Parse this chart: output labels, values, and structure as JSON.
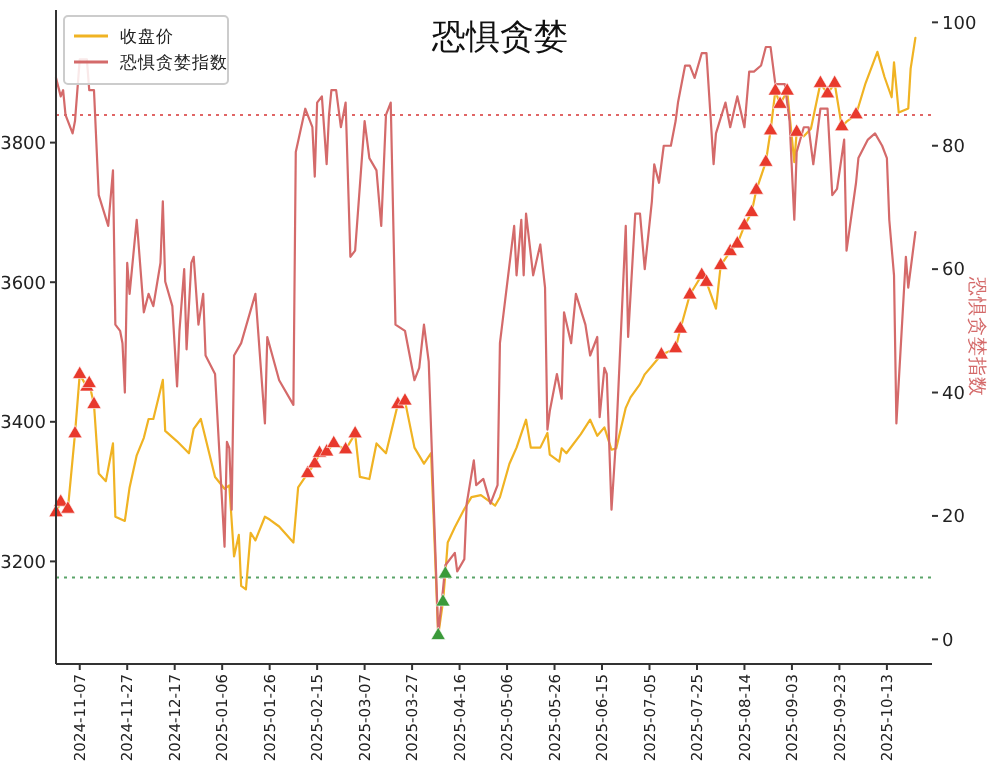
{
  "chart_data": {
    "type": "line",
    "title": "恐惧贪婪",
    "y2label": "恐惧贪婪指数",
    "legend": "top left",
    "xlim": [
      "2024-10-28",
      "2025-11-01"
    ],
    "xticks": [
      "2024-11-07",
      "2024-11-27",
      "2024-12-17",
      "2025-01-06",
      "2025-01-26",
      "2025-02-15",
      "2025-03-07",
      "2025-03-27",
      "2025-04-16",
      "2025-05-06",
      "2025-05-26",
      "2025-06-15",
      "2025-07-05",
      "2025-07-25",
      "2025-08-14",
      "2025-09-03",
      "2025-09-23",
      "2025-10-13"
    ],
    "ylim": [
      3053,
      3990
    ],
    "yticks": [
      3200,
      3400,
      3600,
      3800
    ],
    "y2lim": [
      -4,
      102
    ],
    "y2ticks": [
      0,
      20,
      40,
      60,
      80,
      100
    ],
    "ref_lines": [
      {
        "axis": "y2",
        "value": 85,
        "color": "#e06666",
        "line_style": "dotted"
      },
      {
        "axis": "y2",
        "value": 10,
        "color": "#5aa469",
        "line_style": "dotted"
      }
    ],
    "series": [
      {
        "name": "收盘价",
        "color": "#f0b323",
        "x": [
          "2024-10-28",
          "2024-10-30",
          "2024-11-02",
          "2024-11-05",
          "2024-11-07",
          "2024-11-10",
          "2024-11-11",
          "2024-11-13",
          "2024-11-15",
          "2024-11-18",
          "2024-11-21",
          "2024-11-22",
          "2024-11-26",
          "2024-11-28",
          "2024-12-01",
          "2024-12-04",
          "2024-12-06",
          "2024-12-08",
          "2024-12-12",
          "2024-12-13",
          "2024-12-18",
          "2024-12-23",
          "2024-12-25",
          "2024-12-28",
          "2025-01-03",
          "2025-01-07",
          "2025-01-09",
          "2025-01-11",
          "2025-01-13",
          "2025-01-14",
          "2025-01-16",
          "2025-01-18",
          "2025-01-20",
          "2025-01-24",
          "2025-01-26",
          "2025-01-30",
          "2025-02-05",
          "2025-02-07",
          "2025-02-11",
          "2025-02-14",
          "2025-02-16",
          "2025-02-19",
          "2025-02-22",
          "2025-02-27",
          "2025-03-03",
          "2025-03-05",
          "2025-03-09",
          "2025-03-12",
          "2025-03-16",
          "2025-03-21",
          "2025-03-24",
          "2025-03-28",
          "2025-04-01",
          "2025-04-04",
          "2025-04-07",
          "2025-04-09",
          "2025-04-10",
          "2025-04-11",
          "2025-04-14",
          "2025-04-18",
          "2025-04-21",
          "2025-04-25",
          "2025-05-01",
          "2025-05-03",
          "2025-05-07",
          "2025-05-10",
          "2025-05-14",
          "2025-05-16",
          "2025-05-20",
          "2025-05-23",
          "2025-05-24",
          "2025-05-28",
          "2025-05-29",
          "2025-05-31",
          "2025-06-06",
          "2025-06-10",
          "2025-06-13",
          "2025-06-16",
          "2025-06-19",
          "2025-06-21",
          "2025-06-25",
          "2025-06-27",
          "2025-07-01",
          "2025-07-03",
          "2025-07-06",
          "2025-07-10",
          "2025-07-16",
          "2025-07-18",
          "2025-07-22",
          "2025-07-27",
          "2025-07-29",
          "2025-08-02",
          "2025-08-04",
          "2025-08-08",
          "2025-08-11",
          "2025-08-14",
          "2025-08-17",
          "2025-08-19",
          "2025-08-23",
          "2025-08-25",
          "2025-08-27",
          "2025-08-29",
          "2025-09-01",
          "2025-09-04",
          "2025-09-05",
          "2025-09-08",
          "2025-09-11",
          "2025-09-15",
          "2025-09-18",
          "2025-09-21",
          "2025-09-24",
          "2025-09-26",
          "2025-09-30",
          "2025-10-04",
          "2025-10-09",
          "2025-10-12",
          "2025-10-15",
          "2025-10-16",
          "2025-10-18",
          "2025-10-22",
          "2025-10-23",
          "2025-10-25"
        ],
        "values": [
          3270,
          3285,
          3275,
          3383,
          3468,
          3450,
          3455,
          3425,
          3326,
          3315,
          3369,
          3264,
          3258,
          3306,
          3352,
          3377,
          3404,
          3404,
          3460,
          3387,
          3372,
          3355,
          3390,
          3404,
          3321,
          3304,
          3309,
          3207,
          3238,
          3165,
          3160,
          3241,
          3230,
          3264,
          3260,
          3250,
          3227,
          3306,
          3326,
          3340,
          3355,
          3357,
          3369,
          3360,
          3383,
          3321,
          3318,
          3369,
          3355,
          3425,
          3430,
          3363,
          3340,
          3355,
          3094,
          3142,
          3182,
          3227,
          3249,
          3275,
          3292,
          3295,
          3280,
          3292,
          3340,
          3363,
          3403,
          3363,
          3363,
          3384,
          3353,
          3343,
          3362,
          3355,
          3382,
          3403,
          3380,
          3392,
          3360,
          3362,
          3420,
          3435,
          3454,
          3468,
          3480,
          3496,
          3505,
          3533,
          3582,
          3610,
          3600,
          3562,
          3624,
          3644,
          3655,
          3681,
          3700,
          3732,
          3772,
          3817,
          3874,
          3855,
          3874,
          3772,
          3815,
          3809,
          3820,
          3885,
          3870,
          3885,
          3823,
          3830,
          3840,
          3885,
          3930,
          3894,
          3865,
          3915,
          3843,
          3849,
          3906,
          3950
        ]
      },
      {
        "name": "恐惧贪婪指数",
        "axis": "y2",
        "color": "#d46a6a",
        "x": [
          "2024-10-28",
          "2024-10-30",
          "2024-10-31",
          "2024-11-01",
          "2024-11-04",
          "2024-11-05",
          "2024-11-07",
          "2024-11-09",
          "2024-11-10",
          "2024-11-11",
          "2024-11-13",
          "2024-11-15",
          "2024-11-19",
          "2024-11-21",
          "2024-11-22",
          "2024-11-24",
          "2024-11-25",
          "2024-11-26",
          "2024-11-27",
          "2024-11-28",
          "2024-11-30",
          "2024-12-01",
          "2024-12-04",
          "2024-12-06",
          "2024-12-08",
          "2024-12-11",
          "2024-12-12",
          "2024-12-13",
          "2024-12-16",
          "2024-12-18",
          "2024-12-19",
          "2024-12-21",
          "2024-12-22",
          "2024-12-24",
          "2024-12-25",
          "2024-12-27",
          "2024-12-29",
          "2024-12-30",
          "2025-01-03",
          "2025-01-07",
          "2025-01-08",
          "2025-01-09",
          "2025-01-10",
          "2025-01-11",
          "2025-01-14",
          "2025-01-20",
          "2025-01-24",
          "2025-01-25",
          "2025-01-30",
          "2025-02-05",
          "2025-02-06",
          "2025-02-10",
          "2025-02-11",
          "2025-02-13",
          "2025-02-14",
          "2025-02-15",
          "2025-02-17",
          "2025-02-19",
          "2025-02-20",
          "2025-02-21",
          "2025-02-23",
          "2025-02-25",
          "2025-02-27",
          "2025-03-01",
          "2025-03-03",
          "2025-03-07",
          "2025-03-09",
          "2025-03-12",
          "2025-03-14",
          "2025-03-16",
          "2025-03-18",
          "2025-03-20",
          "2025-03-24",
          "2025-03-25",
          "2025-03-28",
          "2025-03-30",
          "2025-04-01",
          "2025-04-03",
          "2025-04-07",
          "2025-04-09",
          "2025-04-10",
          "2025-04-14",
          "2025-04-15",
          "2025-04-18",
          "2025-04-19",
          "2025-04-22",
          "2025-04-23",
          "2025-04-26",
          "2025-04-29",
          "2025-05-02",
          "2025-05-03",
          "2025-05-09",
          "2025-05-10",
          "2025-05-12",
          "2025-05-13",
          "2025-05-14",
          "2025-05-17",
          "2025-05-20",
          "2025-05-22",
          "2025-05-23",
          "2025-05-24",
          "2025-05-27",
          "2025-05-29",
          "2025-05-30",
          "2025-06-02",
          "2025-06-04",
          "2025-06-08",
          "2025-06-10",
          "2025-06-13",
          "2025-06-14",
          "2025-06-16",
          "2025-06-17",
          "2025-06-19",
          "2025-06-21",
          "2025-06-25",
          "2025-06-26",
          "2025-06-29",
          "2025-07-01",
          "2025-07-03",
          "2025-07-06",
          "2025-07-07",
          "2025-07-09",
          "2025-07-11",
          "2025-07-14",
          "2025-07-16",
          "2025-07-17",
          "2025-07-20",
          "2025-07-22",
          "2025-07-24",
          "2025-07-27",
          "2025-07-29",
          "2025-08-01",
          "2025-08-02",
          "2025-08-06",
          "2025-08-08",
          "2025-08-11",
          "2025-08-14",
          "2025-08-16",
          "2025-08-18",
          "2025-08-21",
          "2025-08-23",
          "2025-08-25",
          "2025-08-27",
          "2025-08-29",
          "2025-08-31",
          "2025-09-02",
          "2025-09-04",
          "2025-09-05",
          "2025-09-08",
          "2025-09-10",
          "2025-09-12",
          "2025-09-13",
          "2025-09-15",
          "2025-09-18",
          "2025-09-20",
          "2025-09-22",
          "2025-09-25",
          "2025-09-26",
          "2025-09-30",
          "2025-10-01",
          "2025-10-05",
          "2025-10-08",
          "2025-10-11",
          "2025-10-13",
          "2025-10-14",
          "2025-10-16",
          "2025-10-17",
          "2025-10-21",
          "2025-10-22",
          "2025-10-25"
        ],
        "values": [
          91,
          88,
          89,
          85,
          82,
          84,
          94,
          94,
          94,
          89,
          89,
          72,
          67,
          76,
          51,
          50,
          48,
          40,
          61,
          56,
          64,
          68,
          53,
          56,
          54,
          61,
          71,
          58,
          54,
          41,
          50,
          60,
          47,
          61,
          62,
          51,
          56,
          46,
          43,
          15,
          32,
          31,
          21,
          46,
          48,
          56,
          35,
          49,
          42,
          38,
          79,
          86,
          85,
          83,
          75,
          87,
          88,
          77,
          85,
          89,
          89,
          83,
          87,
          62,
          63,
          84,
          78,
          76,
          67,
          85,
          87,
          51,
          50,
          48,
          42,
          44,
          51,
          45,
          1,
          8,
          12,
          14,
          11,
          13,
          22,
          29,
          25,
          26,
          22,
          25,
          48,
          67,
          59,
          68,
          59,
          69,
          59,
          64,
          57,
          34,
          37,
          43,
          39,
          53,
          48,
          56,
          51,
          46,
          49,
          36,
          44,
          43,
          21,
          33,
          67,
          49,
          69,
          69,
          60,
          71,
          77,
          74,
          80,
          80,
          84,
          87,
          93,
          93,
          91,
          95,
          95,
          77,
          82,
          87,
          83,
          88,
          83,
          92,
          92,
          93,
          96,
          96,
          90,
          90,
          90,
          84,
          68,
          79,
          83,
          83,
          77,
          80,
          86,
          86,
          72,
          73,
          81,
          63,
          74,
          78,
          81,
          82,
          80,
          78,
          68,
          59,
          35,
          62,
          57,
          66
        ]
      },
      {
        "type": "scatter",
        "marker": "triangle",
        "color": "#e8392c",
        "x": [
          "2024-10-28",
          "2024-10-30",
          "2024-11-02",
          "2024-11-05",
          "2024-11-07",
          "2024-11-10",
          "2024-11-11",
          "2024-11-13",
          "2025-02-11",
          "2025-02-14",
          "2025-02-16",
          "2025-02-19",
          "2025-02-22",
          "2025-02-27",
          "2025-03-03",
          "2025-03-21",
          "2025-03-24",
          "2025-07-10",
          "2025-07-16",
          "2025-07-18",
          "2025-07-22",
          "2025-07-27",
          "2025-07-29",
          "2025-08-04",
          "2025-08-08",
          "2025-08-11",
          "2025-08-14",
          "2025-08-17",
          "2025-08-19",
          "2025-08-23",
          "2025-08-25",
          "2025-08-27",
          "2025-08-29",
          "2025-09-01",
          "2025-09-05",
          "2025-09-15",
          "2025-09-18",
          "2025-09-21",
          "2025-09-24",
          "2025-09-30"
        ],
        "values": [
          3270,
          3285,
          3275,
          3383,
          3468,
          3450,
          3455,
          3425,
          3326,
          3340,
          3355,
          3357,
          3369,
          3360,
          3383,
          3425,
          3430,
          3496,
          3505,
          3533,
          3582,
          3610,
          3600,
          3624,
          3644,
          3655,
          3681,
          3700,
          3732,
          3772,
          3817,
          3874,
          3855,
          3874,
          3815,
          3885,
          3870,
          3885,
          3823,
          3840
        ]
      },
      {
        "type": "scatter",
        "marker": "triangle",
        "color": "#3a9a3a",
        "x": [
          "2025-04-07",
          "2025-04-09",
          "2025-04-10"
        ],
        "values": [
          3094,
          3142,
          3182
        ]
      }
    ]
  }
}
